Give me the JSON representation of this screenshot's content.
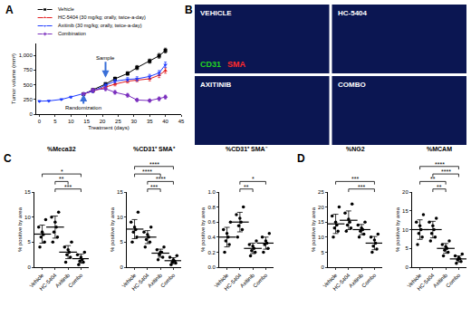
{
  "chart_data": [
    {
      "panel": "A",
      "type": "line",
      "grid": false,
      "legend": "top left",
      "xlabel": "Treatment (days)",
      "ylabel": "Tumor volume (mm³)",
      "x": [
        0,
        3,
        7,
        10,
        14,
        17,
        21,
        24,
        28,
        31,
        35,
        38,
        40
      ],
      "xlim": [
        -1,
        45
      ],
      "xticks": [
        0,
        5,
        10,
        15,
        20,
        25,
        30,
        35,
        40,
        45
      ],
      "ylim": [
        0,
        1200
      ],
      "yticks": [
        0,
        250,
        500,
        750,
        {
          "value": 1000,
          "label": "1,000"
        }
      ],
      "series": [
        {
          "name": "Vehicle",
          "color": "#000000",
          "marker": "square",
          "values": [
            null,
            null,
            null,
            null,
            340,
            410,
            510,
            600,
            690,
            790,
            900,
            990,
            1080
          ],
          "errors": [
            null,
            null,
            null,
            null,
            20,
            25,
            25,
            30,
            30,
            35,
            35,
            40,
            40
          ]
        },
        {
          "name": "HC-5404 (30 mg/kg; orally, twice-a-day)",
          "color": "#e31a1c",
          "marker": "triangle-up",
          "values": [
            null,
            null,
            null,
            null,
            340,
            390,
            460,
            510,
            560,
            580,
            600,
            660,
            740
          ],
          "errors": [
            null,
            null,
            null,
            null,
            20,
            25,
            25,
            30,
            30,
            30,
            35,
            40,
            45
          ]
        },
        {
          "name": "Axitinib (30 mg/kg; orally, twice-a-day)",
          "color": "#1f3cff",
          "marker": "triangle-down",
          "values": [
            220,
            225,
            250,
            290,
            340,
            390,
            490,
            560,
            590,
            600,
            640,
            700,
            840
          ],
          "errors": [
            10,
            10,
            12,
            15,
            20,
            25,
            30,
            30,
            30,
            35,
            35,
            40,
            45
          ]
        },
        {
          "name": "Combination",
          "color": "#7b2fbe",
          "marker": "diamond",
          "values": [
            null,
            null,
            null,
            null,
            340,
            410,
            430,
            370,
            320,
            240,
            230,
            260,
            290
          ],
          "errors": [
            null,
            null,
            null,
            null,
            20,
            25,
            30,
            30,
            30,
            25,
            25,
            30,
            30
          ]
        }
      ],
      "annotations": [
        {
          "text": "Sample",
          "x": 21,
          "y": 620
        },
        {
          "text": "Randomization",
          "x": 14,
          "y": 340
        }
      ]
    },
    {
      "panel": "C",
      "type": "dot",
      "grid": false,
      "title": "%Meca32",
      "ylabel": "% positive by area",
      "categories": [
        "Vehicle",
        "HC-5404",
        "Axitinib",
        "Combo"
      ],
      "values": [
        [
          4,
          5,
          6,
          6.5,
          7,
          8,
          9.5
        ],
        [
          5,
          6,
          7,
          8,
          9,
          10,
          11
        ],
        [
          1,
          2,
          2.5,
          3,
          3.5,
          4,
          5
        ],
        [
          0.5,
          1,
          1.2,
          1.5,
          2,
          2.5,
          3
        ]
      ],
      "means": [
        6.6,
        8,
        3,
        1.7
      ],
      "errors": [
        1.8,
        2.2,
        1.3,
        0.9
      ],
      "ylim": [
        0,
        15
      ],
      "yticks": [
        0,
        5,
        10,
        15
      ],
      "comparisons": [
        {
          "from": 1,
          "to": 3,
          "label": "***"
        },
        {
          "from": 1,
          "to": 2,
          "label": "**"
        },
        {
          "from": 0,
          "to": 3,
          "label": "*"
        }
      ]
    },
    {
      "type": "dot",
      "grid": false,
      "title": "%CD31⁺ SMA⁺",
      "ylabel": "% positive by area",
      "categories": [
        "Vehicle",
        "HC-5404",
        "Axitinib",
        "Combo"
      ],
      "values": [
        [
          5,
          6,
          7,
          7.5,
          8,
          9,
          11
        ],
        [
          4,
          5,
          5.5,
          6,
          6.5,
          7,
          8
        ],
        [
          1.5,
          2,
          2.5,
          3,
          3,
          3.5,
          4
        ],
        [
          0.5,
          0.8,
          1,
          1.2,
          1.5,
          2,
          2.3
        ]
      ],
      "means": [
        7.6,
        6,
        2.8,
        1.3
      ],
      "errors": [
        1.9,
        1.3,
        0.8,
        0.6
      ],
      "ylim": [
        0,
        15
      ],
      "yticks": [
        0,
        5,
        10,
        15
      ],
      "comparisons": [
        {
          "from": 1,
          "to": 2,
          "label": "***"
        },
        {
          "from": 1,
          "to": 3,
          "label": "****"
        },
        {
          "from": 0,
          "to": 2,
          "label": "****"
        },
        {
          "from": 0,
          "to": 3,
          "label": "****"
        }
      ]
    },
    {
      "type": "dot",
      "grid": false,
      "title": "%CD31⁺ SMA⁻",
      "ylabel": "% positive by area",
      "categories": [
        "Vehicle",
        "HC-5404",
        "Axitinib",
        "Combo"
      ],
      "values": [
        [
          0.2,
          0.3,
          0.35,
          0.4,
          0.45,
          0.5,
          0.6
        ],
        [
          0.4,
          0.5,
          0.55,
          0.6,
          0.65,
          0.7,
          0.8
        ],
        [
          0.15,
          0.2,
          0.22,
          0.25,
          0.28,
          0.3,
          0.35
        ],
        [
          0.2,
          0.25,
          0.3,
          0.32,
          0.35,
          0.4,
          0.45
        ]
      ],
      "means": [
        0.4,
        0.6,
        0.25,
        0.32
      ],
      "errors": [
        0.13,
        0.13,
        0.07,
        0.08
      ],
      "ylim": [
        0,
        1
      ],
      "yticks": [
        {
          "value": 0,
          "label": "0.0"
        },
        0.2,
        0.4,
        0.6,
        0.8,
        {
          "value": 1,
          "label": "1.0"
        }
      ],
      "comparisons": [
        {
          "from": 1,
          "to": 2,
          "label": "**"
        },
        {
          "from": 1,
          "to": 3,
          "label": "*"
        }
      ]
    },
    {
      "panel": "D",
      "type": "dot",
      "grid": false,
      "title": "%NG2",
      "ylabel": "% positive by area",
      "categories": [
        "Vehicle",
        "HC-5404",
        "Axitinib",
        "Combo"
      ],
      "values": [
        [
          10,
          12,
          13,
          14,
          15,
          17,
          20
        ],
        [
          12,
          13,
          14,
          15,
          16,
          18,
          21
        ],
        [
          10,
          11,
          12,
          12.5,
          13,
          14,
          15
        ],
        [
          5,
          6,
          7,
          8,
          9,
          10,
          11
        ]
      ],
      "means": [
        14.4,
        15.6,
        12.5,
        8
      ],
      "errors": [
        3.2,
        3.1,
        1.7,
        2.2
      ],
      "ylim": [
        0,
        25
      ],
      "yticks": [
        0,
        5,
        10,
        15,
        20,
        25
      ],
      "comparisons": [
        {
          "from": 1,
          "to": 3,
          "label": "***"
        },
        {
          "from": 0,
          "to": 3,
          "label": "***"
        }
      ]
    },
    {
      "type": "dot",
      "grid": false,
      "title": "%MCAM",
      "ylabel": "% positive by area",
      "categories": [
        "Vehicle",
        "HC-5404",
        "Axitinib",
        "Combo"
      ],
      "values": [
        [
          6,
          8,
          9,
          10,
          11,
          12,
          14
        ],
        [
          7,
          8,
          9,
          10,
          11,
          12,
          13
        ],
        [
          3,
          4,
          4.5,
          5,
          5.5,
          6,
          7
        ],
        [
          1,
          1.5,
          2,
          2.2,
          2.5,
          3,
          3.5
        ]
      ],
      "means": [
        10,
        10,
        5,
        2.2
      ],
      "errors": [
        2.6,
        2.2,
        1.3,
        0.8
      ],
      "ylim": [
        0,
        20
      ],
      "yticks": [
        0,
        5,
        10,
        15,
        20
      ],
      "comparisons": [
        {
          "from": 1,
          "to": 2,
          "label": "**"
        },
        {
          "from": 0,
          "to": 2,
          "label": "**"
        },
        {
          "from": 1,
          "to": 3,
          "label": "****"
        },
        {
          "from": 0,
          "to": 3,
          "label": "****"
        }
      ]
    }
  ],
  "panel_b": {
    "panel": "B",
    "tiles": [
      "VEHICLE",
      "HC-5404",
      "AXITINIB",
      "COMBO"
    ],
    "stains": [
      {
        "name": "CD31",
        "color": "#22d422"
      },
      {
        "name": "SMA",
        "color": "#ff2a2a"
      }
    ]
  }
}
